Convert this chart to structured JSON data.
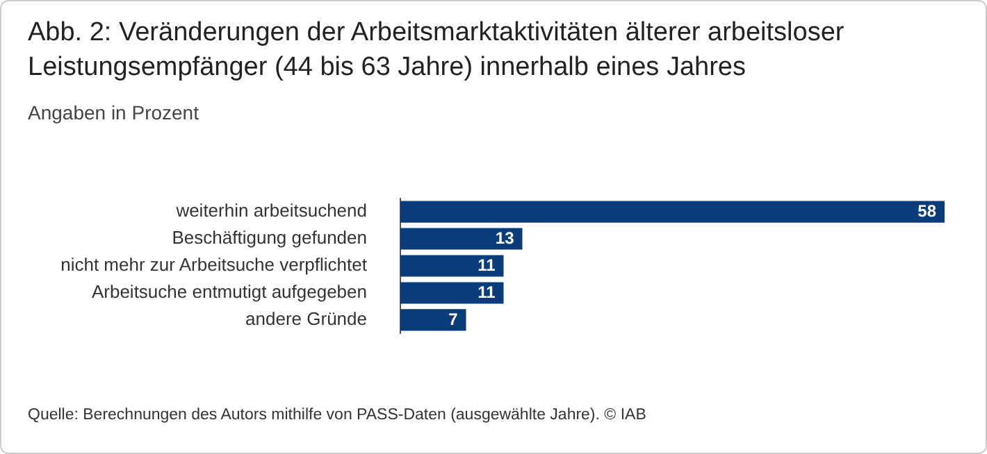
{
  "chart_data": {
    "type": "bar",
    "orientation": "horizontal",
    "title": "Abb. 2: Veränderungen der Arbeitsmarktaktivitäten älterer arbeitsloser Leistungsempfänger (44 bis 63 Jahre) innerhalb eines Jahres",
    "subtitle": "Angaben in Prozent",
    "categories": [
      "weiterhin arbeitsuchend",
      "Beschäftigung gefunden",
      "nicht mehr zur Arbeitsuche verpflichtet",
      "Arbeitsuche entmutigt aufgegeben",
      "andere Gründe"
    ],
    "values": [
      58,
      13,
      11,
      11,
      7
    ],
    "color": "#0b3c7a",
    "data_labels": true,
    "grid": false,
    "legend": false,
    "tick_labels": "y",
    "annotations": [
      "Quelle: Berechnungen des Autors mithilfe von PASS-Daten (ausgewählte Jahre). © IAB"
    ]
  }
}
